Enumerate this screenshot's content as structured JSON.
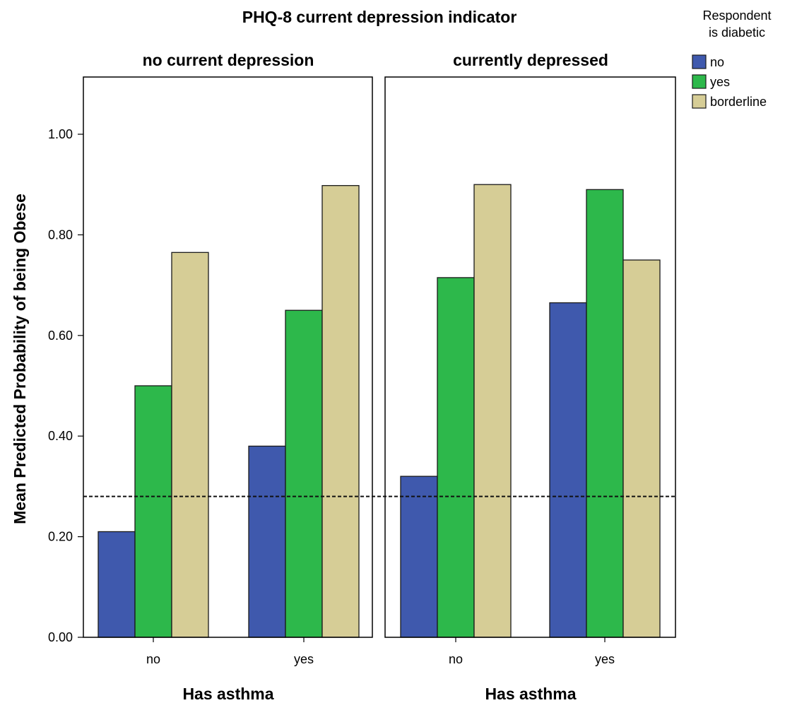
{
  "chart_data": {
    "type": "bar",
    "title": "PHQ-8 current depression indicator",
    "ylabel": "Mean Predicted Probability of being Obese",
    "xlabel": "Has asthma",
    "ylim": [
      0,
      1.12
    ],
    "yticks": [
      "0.00",
      "0.20",
      "0.40",
      "0.60",
      "0.80",
      "1.00"
    ],
    "ytick_values": [
      0,
      0.2,
      0.4,
      0.6,
      0.8,
      1.0
    ],
    "reference_line": 0.28,
    "categories": [
      "no",
      "yes"
    ],
    "legend": {
      "title_line1": "Respondent",
      "title_line2": "is diabetic",
      "placement": "top-right",
      "entries": [
        "no",
        "yes",
        "borderline"
      ]
    },
    "colors": {
      "no": "#3f59ad",
      "yes": "#2db84b",
      "borderline": "#d6cd96"
    },
    "panels": [
      {
        "label": "no current depression",
        "series": [
          {
            "name": "no",
            "values": [
              0.21,
              0.38
            ]
          },
          {
            "name": "yes",
            "values": [
              0.5,
              0.65
            ]
          },
          {
            "name": "borderline",
            "values": [
              0.765,
              0.898
            ]
          }
        ]
      },
      {
        "label": "currently depressed",
        "series": [
          {
            "name": "no",
            "values": [
              0.32,
              0.665
            ]
          },
          {
            "name": "yes",
            "values": [
              0.715,
              0.89
            ]
          },
          {
            "name": "borderline",
            "values": [
              0.9,
              0.75
            ]
          }
        ]
      }
    ]
  }
}
